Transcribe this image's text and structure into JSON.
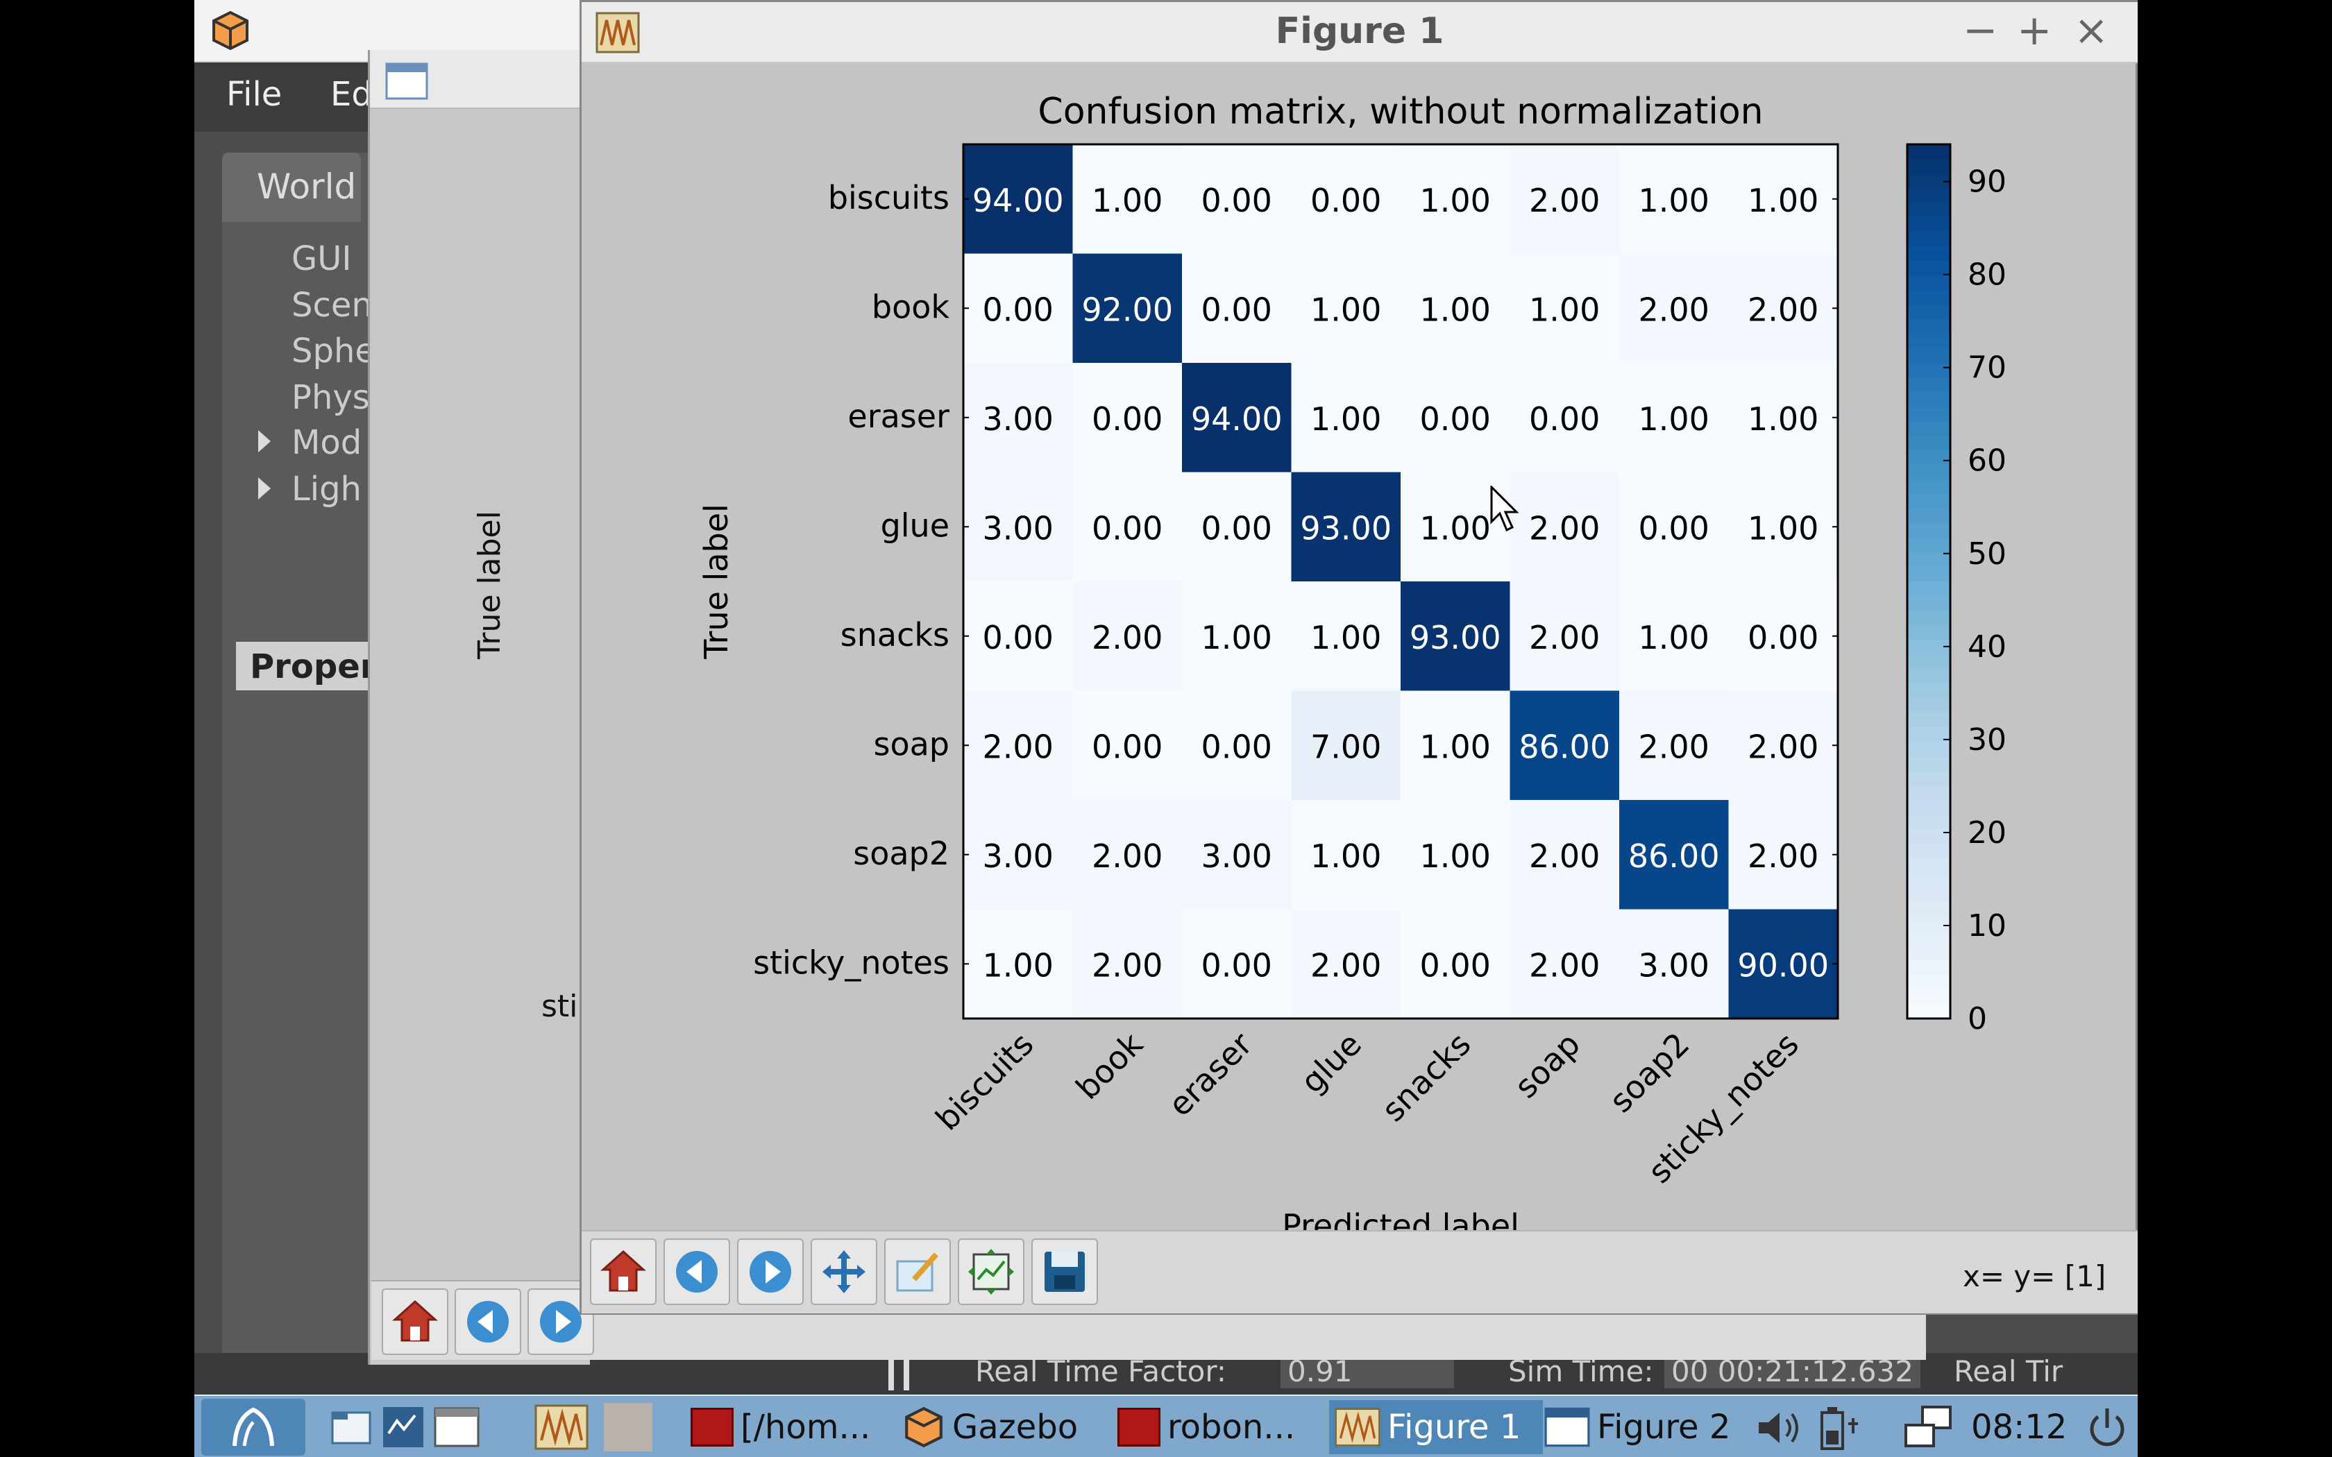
{
  "gazebo": {
    "menu": [
      "File",
      "Ed"
    ],
    "world_tab": "World",
    "tree_items": [
      "GUI",
      "Scen",
      "Sphe",
      "Phys",
      "Mod",
      "Ligh"
    ],
    "property_label": "Propert",
    "status": {
      "rtf_label": "Real Time Factor:",
      "rtf_value": "0.91",
      "sim_time_label": "Sim Time:",
      "sim_time_value": "00 00:21:12.632",
      "real_time_label": "Real Tir"
    }
  },
  "figure2": {
    "ylabel": "True label",
    "partial_tick": "sti"
  },
  "figure1": {
    "title": "Figure 1",
    "controls": {
      "minimize": "−",
      "maximize": "+",
      "close": "×"
    },
    "coord_readout": "x= y= [1]",
    "toolbar": [
      "home-icon",
      "back-icon",
      "forward-icon",
      "pan-icon",
      "configure-icon",
      "zoom-rect-icon",
      "save-icon"
    ]
  },
  "chart_data": {
    "type": "heatmap",
    "title": "Confusion matrix, without normalization",
    "xlabel": "Predicted label",
    "ylabel": "True label",
    "labels": [
      "biscuits",
      "book",
      "eraser",
      "glue",
      "snacks",
      "soap",
      "soap2",
      "sticky_notes"
    ],
    "matrix": [
      [
        94,
        1,
        0,
        0,
        1,
        2,
        1,
        1
      ],
      [
        0,
        92,
        0,
        1,
        1,
        1,
        2,
        2
      ],
      [
        3,
        0,
        94,
        1,
        0,
        0,
        1,
        1
      ],
      [
        3,
        0,
        0,
        93,
        1,
        2,
        0,
        1
      ],
      [
        0,
        2,
        1,
        1,
        93,
        2,
        1,
        0
      ],
      [
        2,
        0,
        0,
        7,
        1,
        86,
        2,
        2
      ],
      [
        3,
        2,
        3,
        1,
        1,
        2,
        86,
        2
      ],
      [
        1,
        2,
        0,
        2,
        0,
        2,
        3,
        90
      ]
    ],
    "colorbar_ticks": [
      0,
      10,
      20,
      30,
      40,
      50,
      60,
      70,
      80,
      90
    ],
    "colorbar_range": [
      0,
      94
    ],
    "colormap": "Blues",
    "colors": {
      "low": "#f7fbff",
      "high": "#08306b"
    }
  },
  "taskbar": {
    "items": [
      {
        "label": "[/hom...",
        "icon": "terminal-icon"
      },
      {
        "label": "Gazebo",
        "icon": "gazebo-icon"
      },
      {
        "label": "robon...",
        "icon": "terminal-icon"
      },
      {
        "label": "Figure 1",
        "icon": "figure-icon"
      },
      {
        "label": "Figure 2",
        "icon": "window-icon"
      }
    ],
    "clock": "08:12"
  }
}
